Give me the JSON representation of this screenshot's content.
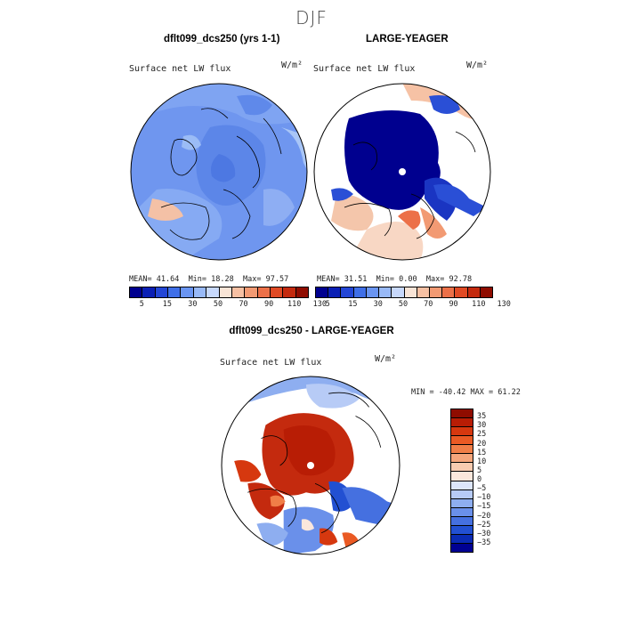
{
  "figure": {
    "season": "DJF"
  },
  "panel_left": {
    "title": "dflt099_dcs250 (yrs 1-1)",
    "field": "Surface net LW flux",
    "units": "W/m²",
    "stats": {
      "mean_label": "MEAN=",
      "mean": "41.64",
      "min_label": "Min=",
      "min": "18.28",
      "max_label": "Max=",
      "max": "97.57"
    }
  },
  "panel_right": {
    "title": "LARGE-YEAGER",
    "field": "Surface net LW flux",
    "units": "W/m²",
    "stats": {
      "mean_label": "MEAN=",
      "mean": "31.51",
      "min_label": "Min=",
      "min": "0.00",
      "max_label": "Max=",
      "max": "92.78"
    }
  },
  "panel_diff": {
    "title": "dflt099_dcs250 - LARGE-YEAGER",
    "field": "Surface net LW flux",
    "units": "W/m²",
    "minmax": "MIN = -40.42 MAX =  61.22"
  },
  "colorbar_abs": {
    "colors": [
      "#00008f",
      "#0a1fb5",
      "#2346d6",
      "#3f6fe8",
      "#6a95f2",
      "#98b9f7",
      "#c7d8fb",
      "#f8e4d6",
      "#f6c0a3",
      "#f29a73",
      "#ec7048",
      "#e04a24",
      "#c42a0e",
      "#8f0c00"
    ],
    "ticks": [
      "5",
      "15",
      "30",
      "50",
      "70",
      "90",
      "110",
      "130"
    ]
  },
  "colorbar_diff": {
    "colors": [
      "#8f0c00",
      "#b81d05",
      "#d6380f",
      "#ea5a24",
      "#f07e47",
      "#f5a67c",
      "#f8cbb0",
      "#fbe7dc",
      "#dde6fb",
      "#b7cbf6",
      "#8eaef0",
      "#6a90ea",
      "#4570e0",
      "#2250d2",
      "#0a2bb4",
      "#000093"
    ],
    "ticks": [
      "35",
      "30",
      "25",
      "20",
      "15",
      "10",
      "5",
      "0",
      "−5",
      "−10",
      "−15",
      "−20",
      "−25",
      "−30",
      "−35"
    ]
  }
}
